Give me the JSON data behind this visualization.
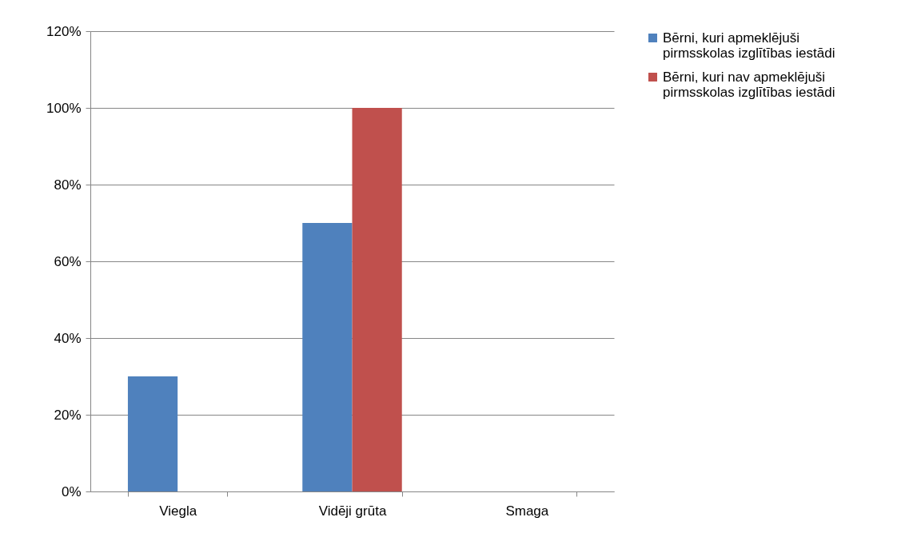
{
  "chart_data": {
    "type": "bar",
    "categories": [
      "Viegla",
      "Vidēji grūta",
      "Smaga"
    ],
    "series": [
      {
        "name": "Bērni, kuri apmeklējuši pirmsskolas izglītības iestādi",
        "color": "#4f81bd",
        "values": [
          30,
          70,
          0
        ]
      },
      {
        "name": "Bērni, kuri nav apmeklējuši pirmsskolas izglītības iestādi",
        "color": "#c0504d",
        "values": [
          0,
          100,
          0
        ]
      }
    ],
    "ylim": [
      0,
      120
    ],
    "yticks": [
      {
        "value": 0,
        "label": "0%"
      },
      {
        "value": 20,
        "label": "20%"
      },
      {
        "value": 40,
        "label": "40%"
      },
      {
        "value": 60,
        "label": "60%"
      },
      {
        "value": 80,
        "label": "80%"
      },
      {
        "value": 100,
        "label": "100%"
      },
      {
        "value": 120,
        "label": "120%"
      }
    ],
    "grid": "y",
    "legend": "right"
  }
}
